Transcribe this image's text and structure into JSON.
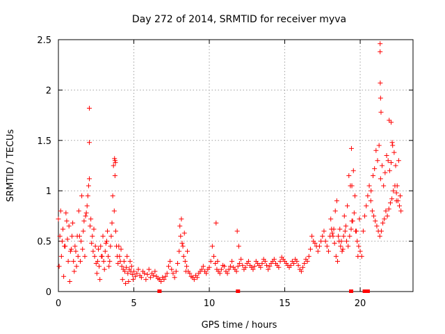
{
  "chart_data": {
    "type": "scatter",
    "title": "Day 272 of 2014, SRMTID for receiver myva",
    "xlabel": "GPS time / hours",
    "ylabel": "SRMTID / TECUs",
    "xlim": [
      0,
      23.5
    ],
    "ylim": [
      0,
      2.5
    ],
    "x_ticks": [
      0,
      5,
      10,
      15,
      20
    ],
    "y_ticks": [
      0,
      0.5,
      1,
      1.5,
      2,
      2.5
    ],
    "x_tick_labels": [
      "0",
      "5",
      "10",
      "15",
      "20"
    ],
    "y_tick_labels": [
      "0",
      "0.5",
      "1",
      "1.5",
      "2",
      "2.5"
    ],
    "grid": true,
    "marker": "+",
    "series": [
      {
        "name": "SRMTID myva",
        "color": "#ff0000",
        "x": [
          0.0,
          0.1,
          0.2,
          0.3,
          0.4,
          0.5,
          0.6,
          0.7,
          0.8,
          0.9,
          1.0,
          1.1,
          1.2,
          1.3,
          1.4,
          1.5,
          1.6,
          1.7,
          1.8,
          1.9,
          2.0,
          2.1,
          2.2,
          2.3,
          2.4,
          2.5,
          2.6,
          2.7,
          2.8,
          2.9,
          3.0,
          3.1,
          3.2,
          3.3,
          3.4,
          3.5,
          3.6,
          3.7,
          3.8,
          3.9,
          4.0,
          4.1,
          4.2,
          4.3,
          4.4,
          4.5,
          4.6,
          4.7,
          4.8,
          4.9,
          5.0,
          5.1,
          5.2,
          5.3,
          5.4,
          5.5,
          5.6,
          5.7,
          5.8,
          5.9,
          6.0,
          6.1,
          6.2,
          6.3,
          6.4,
          6.5,
          6.6,
          6.7,
          6.8,
          6.9,
          7.0,
          7.1,
          7.2,
          7.3,
          7.4,
          7.5,
          7.6,
          7.7,
          7.8,
          7.9,
          8.0,
          8.1,
          8.2,
          8.3,
          8.4,
          8.5,
          8.6,
          8.7,
          8.8,
          8.9,
          9.0,
          9.1,
          9.2,
          9.3,
          9.4,
          9.5,
          9.6,
          9.7,
          9.8,
          9.9,
          10.0,
          10.1,
          10.2,
          10.3,
          10.4,
          10.5,
          10.6,
          10.7,
          10.8,
          10.9,
          11.0,
          11.1,
          11.2,
          11.3,
          11.4,
          11.5,
          11.6,
          11.7,
          11.8,
          11.9,
          12.0,
          12.1,
          12.2,
          12.3,
          12.4,
          12.5,
          12.6,
          12.7,
          12.8,
          12.9,
          13.0,
          13.1,
          13.2,
          13.3,
          13.4,
          13.5,
          13.6,
          13.7,
          13.8,
          13.9,
          14.0,
          14.1,
          14.2,
          14.3,
          14.4,
          14.5,
          14.6,
          14.7,
          14.8,
          14.9,
          15.0,
          15.1,
          15.2,
          15.3,
          15.4,
          15.5,
          15.6,
          15.7,
          15.8,
          15.9,
          16.0,
          16.1,
          16.2,
          16.3,
          16.4,
          16.5,
          16.6,
          16.7,
          16.8,
          16.9,
          17.0,
          17.1,
          17.2,
          17.3,
          17.4,
          17.5,
          17.6,
          17.7,
          17.8,
          17.9,
          18.0,
          18.1,
          18.2,
          18.3,
          18.4,
          18.5,
          18.6,
          18.7,
          18.8,
          18.9,
          19.0,
          19.1,
          19.2,
          19.3,
          19.4,
          19.5,
          19.6,
          19.7,
          19.8,
          19.9,
          20.0,
          20.1,
          20.2,
          20.3,
          20.4,
          20.5,
          20.6,
          20.7,
          20.8,
          20.9,
          21.0,
          21.1,
          21.2,
          21.3,
          21.4,
          21.5,
          21.6,
          21.7,
          21.8,
          21.9,
          22.0,
          22.1,
          22.2,
          22.3,
          22.4,
          22.5,
          22.6,
          22.7,
          0.05,
          0.15,
          0.25,
          0.35,
          0.45,
          0.55,
          0.65,
          0.75,
          0.85,
          0.95,
          1.05,
          1.15,
          1.25,
          1.35,
          1.45,
          1.55,
          1.65,
          1.75,
          1.85,
          1.95,
          2.05,
          2.15,
          2.25,
          2.35,
          2.45,
          2.55,
          2.65,
          2.75,
          2.85,
          2.95,
          3.05,
          3.15,
          3.25,
          3.35,
          3.45,
          3.55,
          3.65,
          3.75,
          3.85,
          3.95,
          4.05,
          4.15,
          4.25,
          4.35,
          4.45,
          4.55,
          4.65,
          4.75,
          4.85,
          4.95,
          8.05,
          8.15,
          8.25,
          8.35,
          8.45,
          8.55,
          10.45,
          10.55,
          11.85,
          11.95,
          18.05,
          18.15,
          18.25,
          18.35,
          18.45,
          18.55,
          18.65,
          18.75,
          18.85,
          18.95,
          19.05,
          19.15,
          19.25,
          19.35,
          19.45,
          19.55,
          19.65,
          19.75,
          19.85,
          19.95,
          20.85,
          20.95,
          21.05,
          21.15,
          21.25,
          21.35,
          21.45,
          21.55,
          21.65,
          21.75,
          21.85,
          21.95,
          22.05,
          22.15,
          22.25,
          22.35,
          22.45,
          22.55,
          22.65,
          2.05,
          2.05,
          21.32,
          21.32,
          21.33,
          21.35,
          21.38,
          3.72,
          3.75,
          3.78,
          19.42,
          19.45,
          21.92,
          22.05,
          22.12,
          20.72,
          22.4
        ],
        "y": [
          0.72,
          0.55,
          0.35,
          0.62,
          0.45,
          0.78,
          0.52,
          0.65,
          0.4,
          0.55,
          0.3,
          0.45,
          0.25,
          0.35,
          0.55,
          0.5,
          0.42,
          0.7,
          0.75,
          0.85,
          1.05,
          0.65,
          0.48,
          0.4,
          0.35,
          0.28,
          0.3,
          0.25,
          0.45,
          0.35,
          0.3,
          0.4,
          0.5,
          0.35,
          0.3,
          0.55,
          0.95,
          0.8,
          0.6,
          0.35,
          0.45,
          0.3,
          0.25,
          0.22,
          0.2,
          0.24,
          0.18,
          0.22,
          0.2,
          0.17,
          0.2,
          0.15,
          0.18,
          0.22,
          0.16,
          0.14,
          0.2,
          0.18,
          0.12,
          0.17,
          0.22,
          0.14,
          0.18,
          0.16,
          0.2,
          0.15,
          0.13,
          0.12,
          0.1,
          0.14,
          0.12,
          0.15,
          0.18,
          0.25,
          0.3,
          0.22,
          0.18,
          0.14,
          0.2,
          0.28,
          0.4,
          0.55,
          0.48,
          0.35,
          0.3,
          0.25,
          0.2,
          0.18,
          0.15,
          0.14,
          0.12,
          0.16,
          0.14,
          0.18,
          0.2,
          0.22,
          0.25,
          0.2,
          0.18,
          0.22,
          0.24,
          0.3,
          0.45,
          0.35,
          0.28,
          0.22,
          0.2,
          0.18,
          0.22,
          0.26,
          0.25,
          0.2,
          0.18,
          0.22,
          0.25,
          0.3,
          0.24,
          0.22,
          0.2,
          0.25,
          0.28,
          0.32,
          0.26,
          0.22,
          0.24,
          0.28,
          0.3,
          0.26,
          0.24,
          0.22,
          0.25,
          0.3,
          0.28,
          0.26,
          0.24,
          0.28,
          0.32,
          0.3,
          0.26,
          0.22,
          0.25,
          0.28,
          0.3,
          0.32,
          0.28,
          0.26,
          0.24,
          0.3,
          0.34,
          0.32,
          0.3,
          0.28,
          0.26,
          0.24,
          0.26,
          0.3,
          0.28,
          0.32,
          0.3,
          0.26,
          0.22,
          0.2,
          0.24,
          0.28,
          0.32,
          0.3,
          0.35,
          0.42,
          0.55,
          0.5,
          0.48,
          0.45,
          0.4,
          0.45,
          0.5,
          0.55,
          0.6,
          0.5,
          0.45,
          0.4,
          0.55,
          0.62,
          0.55,
          0.48,
          0.35,
          0.3,
          0.5,
          0.45,
          0.4,
          0.55,
          0.6,
          0.5,
          0.45,
          0.55,
          0.62,
          0.7,
          0.78,
          0.6,
          0.5,
          0.45,
          0.4,
          0.35,
          0.6,
          0.75,
          0.85,
          0.95,
          1.05,
          0.9,
          0.8,
          0.75,
          0.7,
          0.65,
          0.6,
          0.55,
          0.6,
          0.68,
          0.72,
          0.8,
          0.75,
          0.82,
          0.88,
          0.92,
          1.0,
          1.05,
          0.98,
          0.9,
          0.85,
          0.8,
          0.25,
          0.8,
          0.5,
          0.15,
          0.45,
          0.7,
          0.3,
          0.1,
          0.42,
          0.68,
          0.2,
          0.4,
          0.55,
          0.8,
          0.3,
          0.95,
          0.6,
          0.35,
          0.78,
          0.95,
          1.12,
          0.72,
          0.55,
          0.62,
          0.45,
          0.18,
          0.42,
          0.12,
          0.35,
          0.55,
          0.22,
          0.48,
          0.6,
          0.25,
          0.45,
          0.68,
          1.25,
          1.15,
          0.45,
          0.28,
          0.35,
          0.42,
          0.12,
          0.3,
          0.08,
          0.35,
          0.1,
          0.3,
          0.25,
          0.12,
          0.65,
          0.72,
          0.45,
          0.58,
          0.2,
          0.4,
          0.68,
          0.3,
          0.6,
          0.45,
          0.72,
          0.58,
          0.62,
          0.8,
          0.9,
          0.55,
          0.62,
          0.5,
          0.42,
          0.75,
          0.65,
          0.85,
          1.15,
          1.05,
          0.7,
          1.2,
          0.95,
          0.6,
          0.35,
          0.72,
          1.15,
          1.22,
          1.4,
          1.3,
          1.45,
          1.12,
          1.25,
          1.05,
          1.18,
          1.35,
          1.3,
          1.2,
          1.28,
          1.45,
          1.38,
          1.25,
          1.05,
          1.3,
          0.95,
          1.82,
          1.48,
          2.46,
          2.38,
          2.07,
          1.92,
          1.78,
          1.32,
          1.3,
          1.28,
          1.42,
          1.05,
          1.7,
          1.68,
          1.48,
          1.0,
          0.9
        ]
      }
    ],
    "ground_markers_x": [
      6.7,
      11.9,
      19.4,
      20.3,
      20.4,
      20.5
    ]
  }
}
